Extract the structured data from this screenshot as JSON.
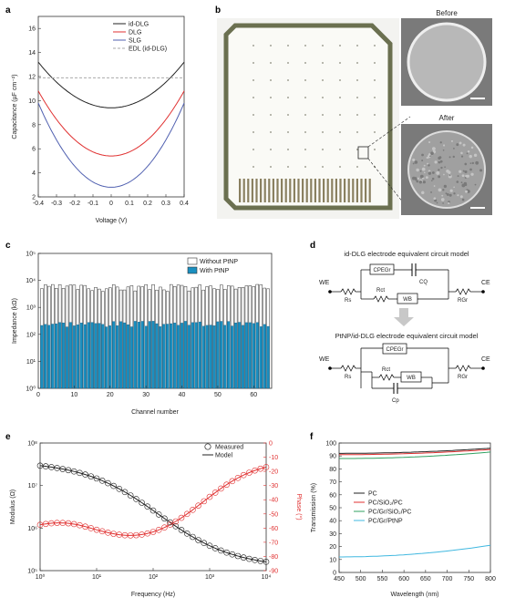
{
  "panels": {
    "a": {
      "label": "a",
      "chart_data": {
        "type": "line",
        "xlabel": "Voltage (V)",
        "ylabel": "Capacitance (µF cm⁻²)",
        "xlim": [
          -0.4,
          0.4
        ],
        "ylim": [
          2,
          17
        ],
        "xticks": [
          "-0.4",
          "-0.3",
          "-0.2",
          "-0.1",
          "0",
          "0.1",
          "0.2",
          "0.3",
          "0.4"
        ],
        "yticks": [
          "2",
          "4",
          "6",
          "8",
          "10",
          "12",
          "14",
          "16"
        ],
        "legend": [
          "id-DLG",
          "DLG",
          "SLG",
          "EDL (id-DLG)"
        ],
        "series": [
          {
            "name": "id-DLG",
            "color": "#222222",
            "min": 9.4,
            "edge": 13.2
          },
          {
            "name": "DLG",
            "color": "#e03030",
            "min": 5.4,
            "edge": 10.8
          },
          {
            "name": "SLG",
            "color": "#5060b0",
            "min": 2.8,
            "edge": 9.8
          },
          {
            "name": "EDL (id-DLG)",
            "color": "#aaaaaa",
            "value": 11.9
          }
        ]
      }
    },
    "b": {
      "label": "b",
      "before_label": "Before",
      "after_label": "After"
    },
    "c": {
      "label": "c",
      "chart_data": {
        "type": "bar",
        "xlabel": "Channel number",
        "ylabel": "Impedance (kΩ)",
        "yscale": "log",
        "xlim": [
          0,
          65
        ],
        "xticks": [
          "0",
          "10",
          "20",
          "30",
          "40",
          "50",
          "60"
        ],
        "yticks": [
          "10⁰",
          "10¹",
          "10²",
          "10³",
          "10⁴",
          "10⁵"
        ],
        "legend": [
          "Without PtNP",
          "With PtNP"
        ],
        "series": [
          {
            "name": "Without PtNP",
            "color": "#ffffff",
            "typical": 5500
          },
          {
            "name": "With PtNP",
            "color": "#1a8fc0",
            "typical": 250
          }
        ]
      }
    },
    "d": {
      "label": "d",
      "title1": "id-DLG electrode equivalent circuit model",
      "title2": "PtNP/id-DLG electrode equivalent circuit model",
      "we": "WE",
      "ce": "CE",
      "rs": "Rs",
      "rct": "Rct",
      "rgr": "RGr",
      "cpe": "CPEGr",
      "cq": "CQ",
      "wb": "WB",
      "cp": "Cp"
    },
    "e": {
      "label": "e",
      "chart_data": {
        "type": "line",
        "xlabel": "Frequency (Hz)",
        "ylabel_left": "Modulus (Ω)",
        "ylabel_right": "Phase (°)",
        "xscale": "log",
        "xticks": [
          "10⁰",
          "10¹",
          "10²",
          "10³",
          "10⁴"
        ],
        "yticks_left": [
          "10⁵",
          "10⁶",
          "10⁷",
          "10⁸"
        ],
        "yticks_right": [
          "0",
          "-10",
          "-20",
          "-30",
          "-40",
          "-50",
          "-60",
          "-70",
          "-80",
          "-90"
        ],
        "legend": [
          "Measured",
          "Model"
        ]
      }
    },
    "f": {
      "label": "f",
      "chart_data": {
        "type": "line",
        "xlabel": "Wavelength (nm)",
        "ylabel": "Transmission (%)",
        "xlim": [
          450,
          800
        ],
        "ylim": [
          0,
          100
        ],
        "xticks": [
          "450",
          "500",
          "550",
          "600",
          "650",
          "700",
          "750",
          "800"
        ],
        "yticks": [
          "0",
          "10",
          "20",
          "30",
          "40",
          "50",
          "60",
          "70",
          "80",
          "90",
          "100"
        ],
        "series": [
          {
            "name": "PC",
            "color": "#222222",
            "start": 92,
            "end": 96
          },
          {
            "name": "PC/SiO₂/PC",
            "color": "#e03030",
            "start": 91,
            "end": 95
          },
          {
            "name": "PC/Gr/SiO₂/PC",
            "color": "#30a060",
            "start": 88,
            "end": 93
          },
          {
            "name": "PC/Gr/PtNP",
            "color": "#40b8e0",
            "start": 12,
            "end": 21
          }
        ]
      }
    }
  }
}
